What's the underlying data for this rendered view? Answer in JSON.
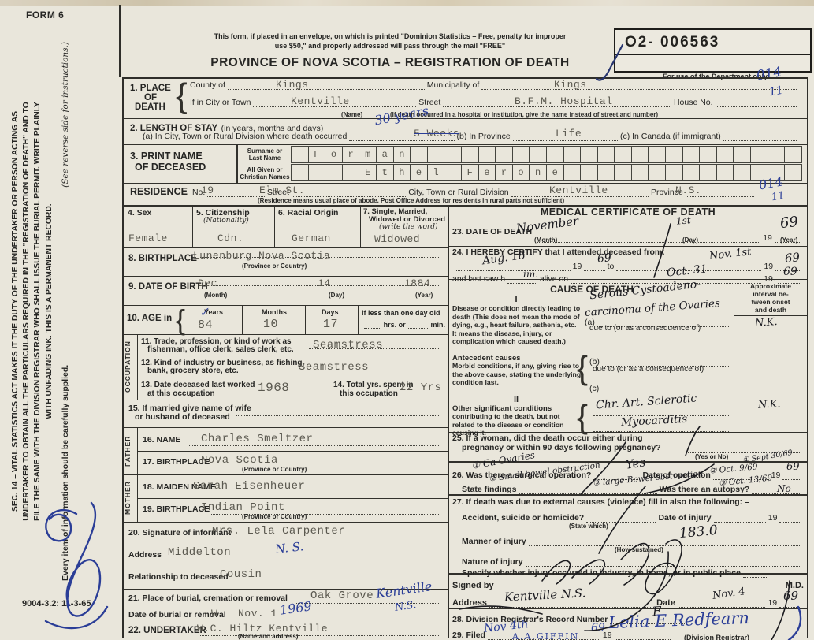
{
  "col": {
    "paper": "#e9e6db",
    "blue": "#2b3e97",
    "typed_ink": "#5a584f",
    "pen_ink": "#1a1a20"
  },
  "hdr": {
    "form_no": "FORM 6",
    "mail1": "This form, if placed in an envelope, on which is printed \"Dominion Statistics – Free, penalty for improper",
    "mail2": "use $50,\" and properly addressed will pass through the mail \"FREE\"",
    "title": "PROVINCE OF NOVA SCOTIA – REGISTRATION OF DEATH",
    "serial": "O2- 006563",
    "dept": "For use of the Department only",
    "code1": "014",
    "code2": "11",
    "print_code": "9004-3.2: 11-3-65"
  },
  "sb": {
    "notice": "SEC. 14 – VITAL STATISTICS ACT MAKES IT THE DUTY OF THE UNDERTAKER OR PERSON ACTING AS UNDERTAKER TO OBTAIN ALL THE PARTICULARS REQUIRED IN THE \"REGISTRATION OF DEATH\" AND TO FILE THE SAME WITH THE DIVISION REGISTRAR WHO SHALL ISSUE THE BURIAL PERMIT. WRITE PLAINLY WITH UNFADING INK. THIS IS A PERMANENT RECORD.",
    "every": "Every item of information should be carefully supplied.",
    "reverse": "(See reverse side for instructions.)"
  },
  "s1": {
    "n1": "1. PLACE",
    "n2": "OF",
    "n3": "DEATH",
    "county_l": "County of",
    "county": "Kings",
    "mun_l": "Municipality of",
    "mun": "Kings",
    "city_l": "If in City or Town",
    "city": "Kentville",
    "name_sub": "(Name)",
    "street_l": "Street",
    "street": "B.F.M. Hospital",
    "house_l": "House No.",
    "note": "(If death occurred in a hospital or institution, give the name instead of street and number)"
  },
  "s2": {
    "t": "2. LENGTH OF STAY",
    "ts": "(in years, months and days)",
    "a_l": "(a) In City, Town or Rural Division where death occurred",
    "a_typed": "5 Weeks",
    "a_hand": "30 years",
    "b_l": "(b) In Province",
    "b": "Life",
    "c_l": "(c) In Canada (if immigrant)"
  },
  "s3": {
    "n1": "3. PRINT NAME",
    "n2": "OF DECEASED",
    "sur1": "Surname or",
    "sur2": "Last Name",
    "giv1": "All Given or",
    "giv2": "Christian Names",
    "surname": " Forman",
    "given": "    Ethel Ferone"
  },
  "res": {
    "t": "RESIDENCE",
    "no_l": "No.",
    "no": "19",
    "street_l": "Street",
    "street": "Elm St.",
    "city_l": "City, Town or Rural Division",
    "city": "Kentville",
    "prov_l": "Province",
    "prov": "N.S.",
    "note": "(Residence means usual place of abode. Post Office Address for residents in rural parts not sufficient)",
    "code1": "014",
    "code2": "11"
  },
  "s4": {
    "l": "4. Sex",
    "v": "Female"
  },
  "s5": {
    "l": "5. Citizenship",
    "ls": "(Nationality)",
    "v": "Cdn."
  },
  "s6": {
    "l": "6. Racial Origin",
    "v": "German"
  },
  "s7": {
    "l1": "7. Single, Married,",
    "l2": "Widowed or Divorced",
    "ls": "(write the word)",
    "v": "Widowed"
  },
  "s8": {
    "l": "8. BIRTHPLACE",
    "v": "Lunenburg Nova Scotia",
    "sub": "(Province or Country)"
  },
  "s9": {
    "l": "9. DATE OF BIRTH",
    "m": "Dec.",
    "d": "14",
    "y": "1884",
    "ms": "(Month)",
    "ds": "(Day)",
    "ys": "(Year)"
  },
  "s10": {
    "l": "10. AGE in",
    "yl": "Years",
    "y": "84",
    "ml": "Months",
    "m": "10",
    "dl": "Days",
    "d": "17",
    "il": "If less than one day old",
    "hrs": "hrs. or",
    "min": "min.",
    "check": "✓"
  },
  "occ": {
    "side": "OCCUPATION",
    "l11a": "11. Trade, profession, or kind of work as",
    "l11b": "fisherman, office clerk, sales clerk, etc.",
    "v11": "Seamstress",
    "l12a": "12. Kind of industry or business, as fishing,",
    "l12b": "bank, grocery store, etc.",
    "v12": "Seamstress",
    "l13a": "13. Date deceased last worked",
    "l13b": "at this occupation",
    "v13": "1968",
    "l14a": "14. Total yrs. spent in",
    "l14b": "this occupation",
    "v14": "22 Yrs"
  },
  "s15": {
    "l1": "15. If married give name of wife",
    "l2": "or husband of deceased"
  },
  "fa": {
    "side": "FATHER",
    "l16": "16. NAME",
    "v16": "Charles Smeltzer",
    "l17": "17. BIRTHPLACE",
    "v17": "Nova Scotia",
    "sub": "(Province or Country)"
  },
  "mo": {
    "side": "MOTHER",
    "l18": "18. MAIDEN NAME",
    "v18": "Sarah Eisenheuer",
    "l19": "19. BIRTHPLACE",
    "v19": "Indian Point",
    "sub": "(Province or Country)"
  },
  "s20": {
    "l": "20. Signature of informant",
    "v": "Mrs. Lela Carpenter",
    "al": "Address",
    "a": "Middelton",
    "ah": "N. S.",
    "rl": "Relationship to deceased",
    "r": "Cousin"
  },
  "s21": {
    "l": "21. Place of burial, cremation or removal",
    "v": "Oak Grove",
    "h1": "Kentville",
    "h2": "N.S.",
    "dl": "Date of burial or removal",
    "d1": "W",
    "d2": "Nov. 1",
    "dh": "1969"
  },
  "s22": {
    "l": "22. UNDERTAKER",
    "v": "W.C. Hiltz Kentville",
    "sub": "(Name and address)"
  },
  "med": {
    "title": "MEDICAL CERTIFICATE OF DEATH",
    "l23": "23. DATE OF DEATH",
    "ms": "(Month)",
    "ds": "(Day)",
    "ys": "(Year)",
    "y19": "19",
    "h23m": "November",
    "h23d": "1st",
    "h23y": "69",
    "l24": "24. I HEREBY CERTIFY that I attended deceased from:",
    "to": "to",
    "last1": "and last saw h",
    "last2": "alive on",
    "y19d": "19.",
    "h24from": "Aug. 18 -",
    "h24fy": "69",
    "h24to": "Nov. 1st",
    "h24ty": "69",
    "h24im": "im.",
    "h24seen": "Oct. 31",
    "h24sy": "69"
  },
  "cause": {
    "title": "CAUSE OF DEATH",
    "int1": "Approximate",
    "int2": "interval be-",
    "int3": "tween onset",
    "int4": "and death",
    "p1": "I",
    "d1": "Disease or condition directly leading to death (This does not mean the mode of dying, e.g., heart failure, asthenia, etc. It means the disease, injury, or complication which caused death.)",
    "a_l": "(a)",
    "due": "due to (or as a consequence of)",
    "b_l": "(b)",
    "c_l": "(c)",
    "ante1": "Antecedent causes",
    "ante2": "Morbid conditions, if any, giving rise to the above cause, stating the underlying condition last.",
    "p2": "II",
    "o1": "Other significant conditions",
    "o2": "contributing to the death, but not related to the disease or condition causing it.",
    "ha1": "Serous Cystoadeno-",
    "ha2": "carcinoma of the Ovaries",
    "hint1": "N.K.",
    "ho1": "Chr. Art. Sclerotic",
    "ho2": "Myocarditis",
    "hint2": "N.K."
  },
  "s25": {
    "l1": "25. If a woman, did the death occur either during",
    "l2": "pregnancy or within 90 days following pregnancy?",
    "sub": "(Yes or No)"
  },
  "s26": {
    "l": "26. Was there a surgical operation?",
    "hYes": "Yes",
    "dl": "Date of operation",
    "y19": "19",
    "hy": "69",
    "fl": "State findings",
    "al": "Was there an autopsy?",
    "hNo": "No",
    "hd1": "① Sept 30/69",
    "hd2": "② Oct. 9/69",
    "hd3": "③ Oct. 13/69",
    "hf1": "① Ca Ovaries",
    "hf2": "② Small bowel obstruction",
    "hf3": "③ large Bowel obstruction"
  },
  "s27": {
    "l": "27. If death was due to external causes (violence) fill in also the following: –",
    "acc": "Accident, suicide or homicide?",
    "accs": "(State which)",
    "dinj": "Date of injury",
    "y19": "19",
    "man": "Manner of injury",
    "hman": "183.0",
    "mans": "(How sustained)",
    "nat": "Nature of injury",
    "spec": "Specify whether injury occurred in industry, in home, or in public place"
  },
  "sgn": {
    "l": "Signed by",
    "md": "M.D.",
    "al": "Address",
    "ha": "Kentville  N.S.",
    "dl": "Date",
    "hd": "Nov. 4",
    "y19": "19",
    "hy": "69"
  },
  "s28": {
    "l": "28. Division Registrar's Record Number",
    "h": "F"
  },
  "s29": {
    "l": "29. Filed",
    "y19": "19",
    "hy": "69",
    "hdate": "Nov 4th",
    "hreg": "Lelia E Redfearn",
    "sub": "(Division Registrar)",
    "giffin": "A.A.GIFFIN"
  }
}
